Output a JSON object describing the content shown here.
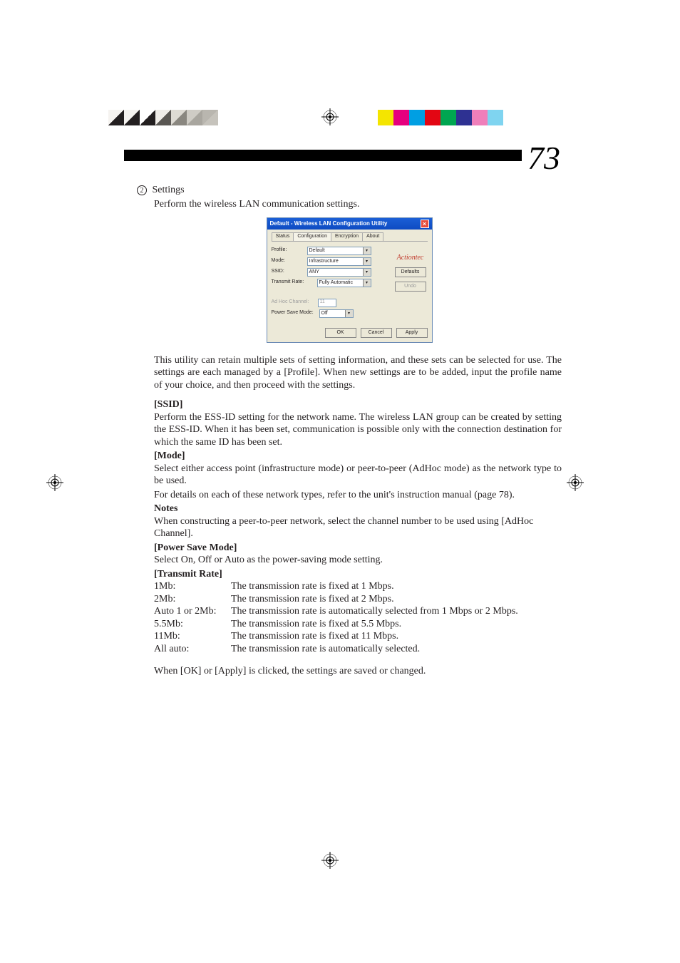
{
  "page_number": "73",
  "color_bars": {
    "left": [
      {
        "light": "#f5f3f0",
        "dark": "#231f20"
      },
      {
        "light": "#f5f3f0",
        "dark": "#231f20"
      },
      {
        "light": "#ffffff",
        "dark": "#231f20"
      },
      {
        "light": "#efece8",
        "dark": "#5a5753"
      },
      {
        "light": "#dedbd4",
        "dark": "#8a8780"
      },
      {
        "light": "#cfccc5",
        "dark": "#a9a69f"
      },
      {
        "light": "#b9b6af",
        "dark": "#c6c3bc"
      },
      {
        "light": "#ffffff",
        "dark": "#ffffff"
      }
    ],
    "right": [
      "#f4e500",
      "#e6007e",
      "#009fe3",
      "#e30613",
      "#00a651",
      "#2e3192",
      "#ef7fba",
      "#7fd4f0"
    ]
  },
  "step": {
    "num": "2",
    "title": "Settings"
  },
  "instr": "Perform the wireless LAN communication settings.",
  "dialog": {
    "title": "Default - Wireless LAN Configuration Utility",
    "tabs": [
      "Status",
      "Configuration",
      "Encryption",
      "About"
    ],
    "active_tab": 1,
    "fields": {
      "profile_lbl": "Profile:",
      "profile_val": "Default",
      "mode_lbl": "Mode:",
      "mode_val": "Infrastructure",
      "ssid_lbl": "SSID:",
      "ssid_val": "ANY",
      "txrate_lbl": "Transmit Rate:",
      "txrate_val": "Fully Automatic",
      "adhoc_lbl": "Ad Hoc Channel:",
      "adhoc_val": "11",
      "psm_lbl": "Power Save Mode:",
      "psm_val": "Off"
    },
    "logo": "Actiontec",
    "btn_defaults": "Defaults",
    "btn_undo": "Undo",
    "btn_ok": "OK",
    "btn_cancel": "Cancel",
    "btn_apply": "Apply"
  },
  "para1": "This utility can retain multiple sets of setting information, and these sets can be selected for use.  The settings are each managed by a [Profile].  When new settings are to be added, input the profile name of your choice, and then proceed with the settings.",
  "ssid": {
    "h": "[SSID]",
    "p": "Perform the ESS-ID setting for the network name.  The wireless LAN group can be created by setting the ESS-ID.  When it has been set, communication is possible only with the connection destination for which the same ID has been set."
  },
  "mode": {
    "h": "[Mode]",
    "p1": "Select either access point (infrastructure mode) or peer-to-peer (AdHoc mode) as the network type to be used.",
    "p2": "For details on each of these network types, refer to the unit's instruction manual (page 78)."
  },
  "notes": {
    "h": "Notes",
    "p": "When constructing a peer-to-peer network, select the channel number to be used using [AdHoc Channel]."
  },
  "psm": {
    "h": "[Power Save Mode]",
    "p": "Select On, Off or Auto as the power-saving mode setting."
  },
  "txrate": {
    "h": "[Transmit Rate]",
    "rows": [
      {
        "l": "1Mb:",
        "d": "The transmission rate is fixed at 1 Mbps."
      },
      {
        "l": "2Mb:",
        "d": "The transmission rate is fixed at 2 Mbps."
      },
      {
        "l": "Auto 1 or 2Mb:",
        "d": "The transmission rate is automatically selected from 1 Mbps or 2 Mbps."
      },
      {
        "l": "5.5Mb:",
        "d": "The transmission rate is fixed at 5.5 Mbps."
      },
      {
        "l": "11Mb:",
        "d": "The transmission rate is fixed at 11 Mbps."
      },
      {
        "l": "All auto:",
        "d": "The transmission rate is automatically selected."
      }
    ]
  },
  "final": "When [OK] or [Apply] is clicked, the settings are saved or changed."
}
